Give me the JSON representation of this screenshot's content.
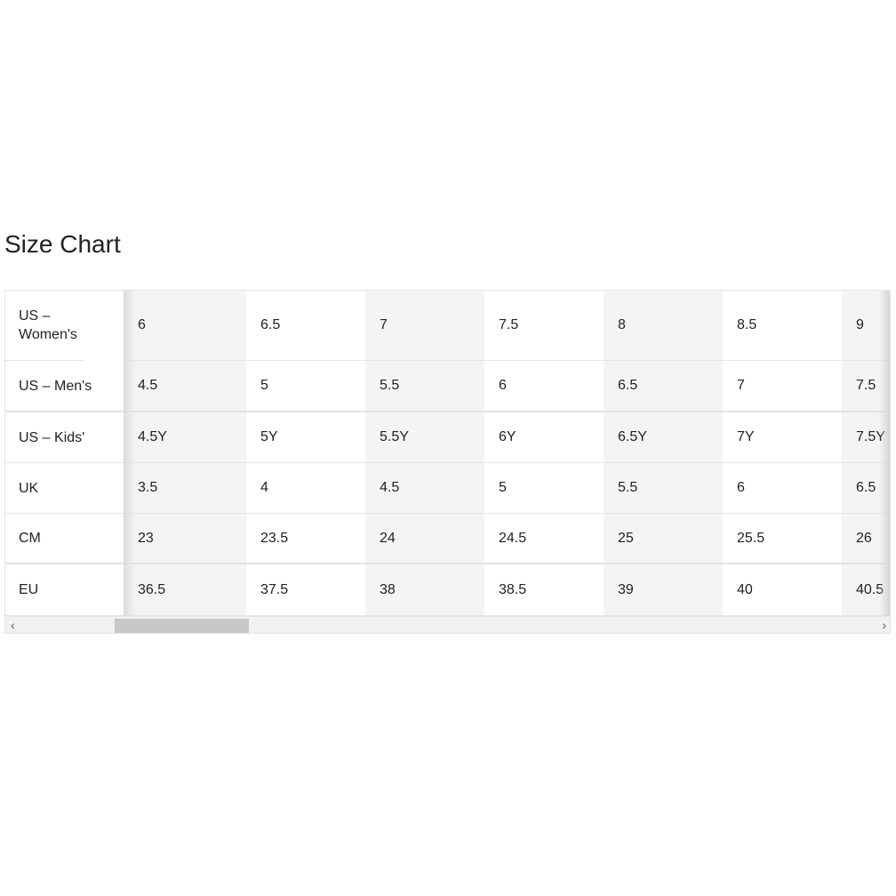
{
  "title": "Size Chart",
  "rows": [
    {
      "label": "US – Women's",
      "values": [
        "6",
        "6.5",
        "7",
        "7.5",
        "8",
        "8.5",
        "9"
      ]
    },
    {
      "label": "US – Men's",
      "values": [
        "4.5",
        "5",
        "5.5",
        "6",
        "6.5",
        "7",
        "7.5"
      ]
    },
    {
      "label": "US – Kids'",
      "values": [
        "4.5Y",
        "5Y",
        "5.5Y",
        "6Y",
        "6.5Y",
        "7Y",
        "7.5Y"
      ]
    },
    {
      "label": "UK",
      "values": [
        "3.5",
        "4",
        "4.5",
        "5",
        "5.5",
        "6",
        "6.5"
      ]
    },
    {
      "label": "CM",
      "values": [
        "23",
        "23.5",
        "24",
        "24.5",
        "25",
        "25.5",
        "26"
      ]
    },
    {
      "label": "EU",
      "values": [
        "36.5",
        "37.5",
        "38",
        "38.5",
        "39",
        "40",
        "40.5"
      ]
    }
  ],
  "scrollbar": {
    "left_arrow": "‹",
    "right_arrow": "›",
    "position_percent": 0
  },
  "colors": {
    "stripe": "#f4f4f4",
    "white": "#ffffff",
    "border": "#e6e6e6",
    "thumb": "#c8c8c8"
  }
}
